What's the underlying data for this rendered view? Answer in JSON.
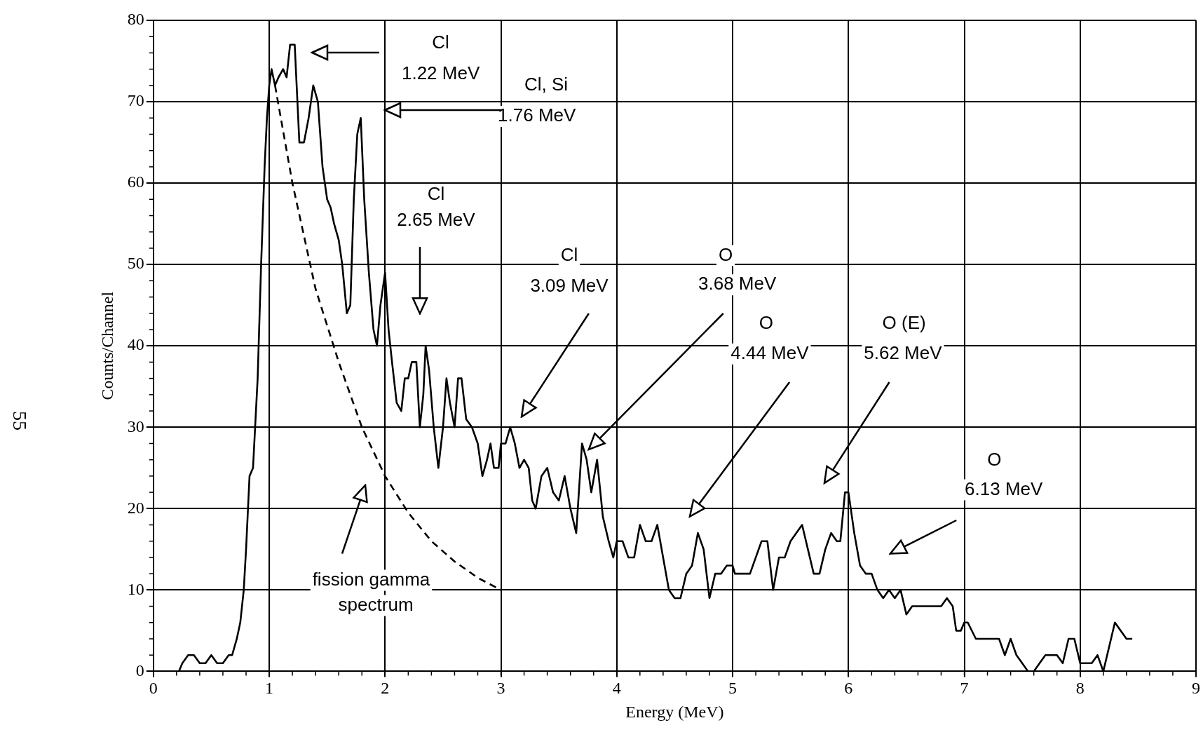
{
  "chart_data": {
    "type": "line",
    "xlabel": "Energy (MeV)",
    "ylabel": "Counts/Channel",
    "xlim": [
      0,
      9
    ],
    "ylim": [
      0,
      80
    ],
    "xticks": [
      0,
      1,
      2,
      3,
      4,
      5,
      6,
      7,
      8,
      9
    ],
    "yticks": [
      0,
      10,
      20,
      30,
      40,
      50,
      60,
      70,
      80
    ],
    "grid": true,
    "legend": false,
    "marker": "none",
    "series": [
      {
        "type": "line",
        "color": "#000000",
        "line_style": "solid",
        "x": [
          0.22,
          0.25,
          0.3,
          0.35,
          0.4,
          0.45,
          0.5,
          0.55,
          0.6,
          0.65,
          0.68,
          0.72,
          0.75,
          0.78,
          0.8,
          0.83,
          0.86,
          0.9,
          0.93,
          0.96,
          0.98,
          1.0,
          1.02,
          1.05,
          1.08,
          1.12,
          1.15,
          1.18,
          1.22,
          1.26,
          1.3,
          1.34,
          1.38,
          1.42,
          1.46,
          1.5,
          1.53,
          1.56,
          1.6,
          1.63,
          1.67,
          1.7,
          1.73,
          1.76,
          1.79,
          1.82,
          1.86,
          1.9,
          1.93,
          1.96,
          2.0,
          2.03,
          2.06,
          2.1,
          2.14,
          2.17,
          2.2,
          2.23,
          2.27,
          2.3,
          2.33,
          2.35,
          2.38,
          2.42,
          2.46,
          2.5,
          2.53,
          2.56,
          2.6,
          2.63,
          2.66,
          2.7,
          2.75,
          2.8,
          2.84,
          2.88,
          2.91,
          2.94,
          2.98,
          3.0,
          3.04,
          3.08,
          3.12,
          3.16,
          3.2,
          3.24,
          3.27,
          3.3,
          3.35,
          3.4,
          3.45,
          3.5,
          3.55,
          3.6,
          3.65,
          3.7,
          3.74,
          3.78,
          3.83,
          3.88,
          3.93,
          3.97,
          4.0,
          4.05,
          4.1,
          4.15,
          4.2,
          4.25,
          4.3,
          4.35,
          4.4,
          4.45,
          4.5,
          4.55,
          4.6,
          4.65,
          4.7,
          4.75,
          4.8,
          4.85,
          4.9,
          4.95,
          5.0,
          5.02,
          5.05,
          5.1,
          5.15,
          5.2,
          5.25,
          5.3,
          5.35,
          5.4,
          5.45,
          5.5,
          5.55,
          5.6,
          5.65,
          5.7,
          5.75,
          5.8,
          5.85,
          5.9,
          5.93,
          5.97,
          6.0,
          6.05,
          6.1,
          6.15,
          6.2,
          6.25,
          6.3,
          6.35,
          6.4,
          6.45,
          6.5,
          6.55,
          6.6,
          6.7,
          6.8,
          6.85,
          6.9,
          6.93,
          6.97,
          7.0,
          7.03,
          7.1,
          7.2,
          7.3,
          7.35,
          7.4,
          7.45,
          7.5,
          7.55,
          7.6,
          7.65,
          7.7,
          7.8,
          7.85,
          7.9,
          7.95,
          8.0,
          8.1,
          8.15,
          8.2,
          8.3,
          8.35,
          8.4,
          8.45
        ],
        "values": [
          0,
          1,
          2,
          2,
          1,
          1,
          2,
          1,
          1,
          2,
          2,
          4,
          6,
          10,
          15,
          24,
          25,
          36,
          50,
          62,
          68,
          72,
          74,
          72,
          73,
          74,
          73,
          77,
          77,
          65,
          65,
          68,
          72,
          70,
          62,
          58,
          57,
          55,
          53,
          50,
          44,
          45,
          58,
          66,
          68,
          58,
          49,
          42,
          40,
          45,
          49,
          42,
          38,
          33,
          32,
          36,
          36,
          38,
          38,
          30,
          34,
          40,
          37,
          30,
          25,
          30,
          36,
          33,
          30,
          36,
          36,
          31,
          30,
          28,
          24,
          26,
          28,
          25,
          25,
          28,
          28,
          30,
          28,
          25,
          26,
          25,
          21,
          20,
          24,
          25,
          22,
          21,
          24,
          20,
          17,
          28,
          26,
          22,
          26,
          19,
          16,
          14,
          16,
          16,
          14,
          14,
          18,
          16,
          16,
          18,
          14,
          10,
          9,
          9,
          12,
          13,
          17,
          15,
          9,
          12,
          12,
          13,
          13,
          12,
          12,
          12,
          12,
          14,
          16,
          16,
          10,
          14,
          14,
          16,
          17,
          18,
          15,
          12,
          12,
          15,
          17,
          16,
          16,
          22,
          22,
          17,
          13,
          12,
          12,
          10,
          9,
          10,
          9,
          10,
          7,
          8,
          8,
          8,
          8,
          9,
          8,
          5,
          5,
          6,
          6,
          4,
          4,
          4,
          2,
          4,
          2,
          1,
          0,
          0,
          1,
          2,
          2,
          1,
          4,
          4,
          1,
          1,
          2,
          0,
          6,
          5,
          4,
          4
        ]
      },
      {
        "type": "line",
        "color": "#000000",
        "line_style": "dashed",
        "x": [
          1.05,
          1.2,
          1.4,
          1.6,
          1.8,
          2.0,
          2.2,
          2.4,
          2.6,
          2.8,
          3.0
        ],
        "values": [
          72,
          60,
          47,
          38,
          30,
          24,
          19.5,
          16,
          13.5,
          11.5,
          10
        ]
      }
    ],
    "annotations": [
      "Cl",
      "1.22 MeV",
      "Cl, Si",
      "1.76 MeV",
      "Cl",
      "2.65 MeV",
      "Cl",
      "3.09 MeV",
      "O",
      "3.68 MeV",
      "O",
      "4.44 MeV",
      "O (E)",
      "5.62 MeV",
      "O",
      "6.13 MeV",
      "fission gamma",
      "spectrum",
      "55"
    ]
  }
}
